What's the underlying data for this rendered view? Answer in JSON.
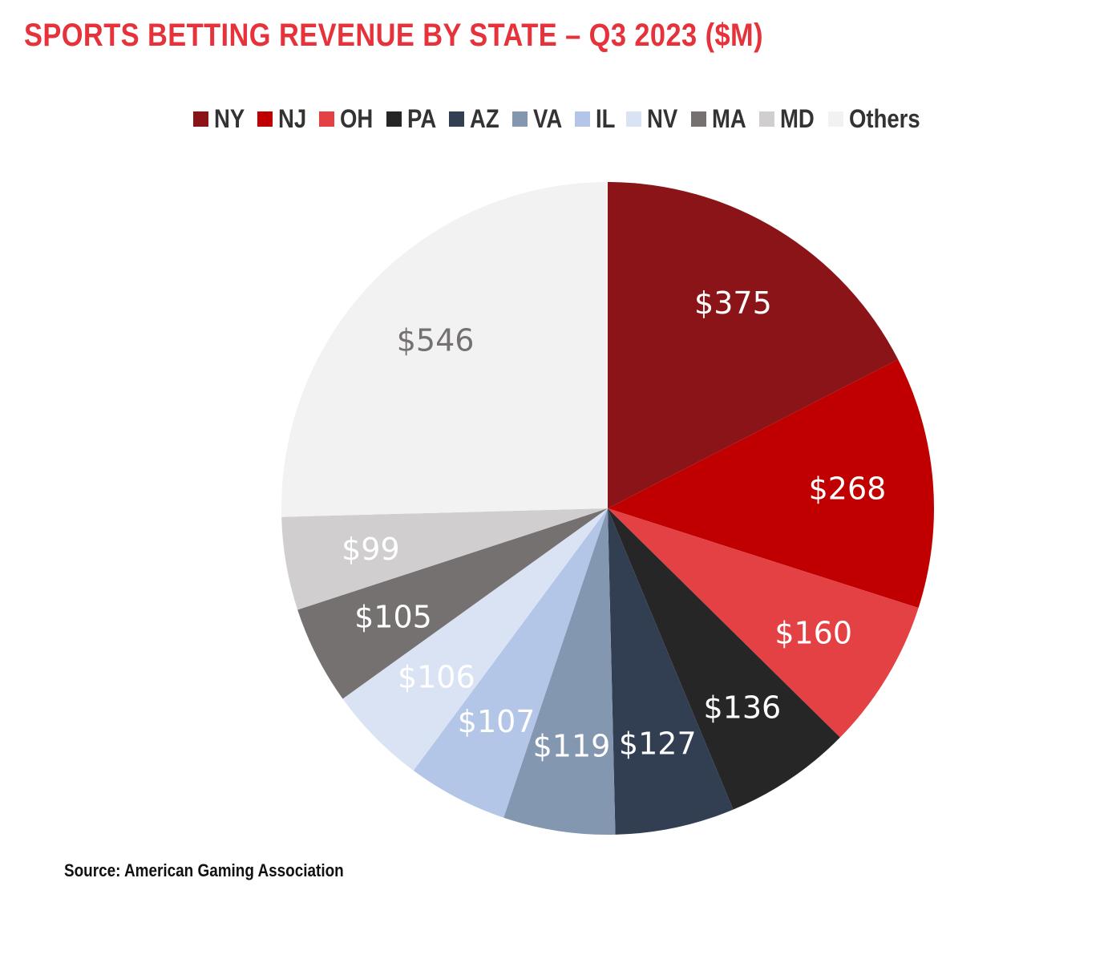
{
  "title": "SPORTS BETTING REVENUE BY STATE – Q3 2023 ($M)",
  "source": "Source: American Gaming Association",
  "chart_data": {
    "type": "pie",
    "title": "SPORTS BETTING REVENUE BY STATE – Q3 2023 ($M)",
    "legend_position": "top",
    "categories": [
      "NY",
      "NJ",
      "OH",
      "PA",
      "AZ",
      "VA",
      "IL",
      "NV",
      "MA",
      "MD",
      "Others"
    ],
    "values": [
      375,
      268,
      160,
      136,
      127,
      119,
      107,
      106,
      105,
      99,
      546
    ],
    "labels": [
      "$375",
      "$268",
      "$160",
      "$136",
      "$127",
      "$119",
      "$107",
      "$106",
      "$105",
      "$99",
      "$546"
    ],
    "colors": [
      "#8b1418",
      "#c00000",
      "#e44144",
      "#262626",
      "#323e52",
      "#8497b0",
      "#b4c6e7",
      "#dae3f3",
      "#767171",
      "#d0cece",
      "#f2f2f2"
    ],
    "label_colors": [
      "#ffffff",
      "#ffffff",
      "#ffffff",
      "#ffffff",
      "#ffffff",
      "#ffffff",
      "#ffffff",
      "#ffffff",
      "#ffffff",
      "#ffffff",
      "#767171"
    ]
  }
}
